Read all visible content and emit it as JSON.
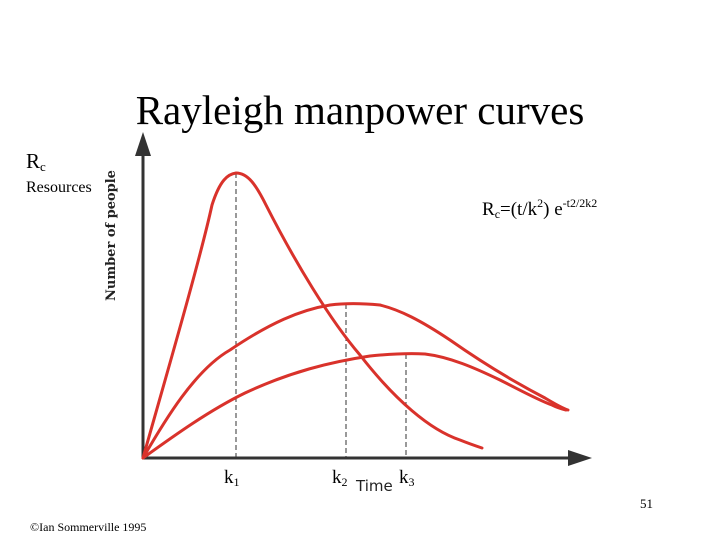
{
  "slide": {
    "title": "Rayleigh manpower curves",
    "rc_symbol": "R",
    "rc_subscript": "c",
    "resources_label": "Resources",
    "formula": {
      "lhs_base": "R",
      "lhs_sub": "c",
      "eq_open": "=(t/k",
      "k_sq": "2",
      "eq_close": ") e",
      "exponent": "-t2/2k2"
    },
    "axes": {
      "y_label": "Number of people",
      "x_label": "Time"
    },
    "k_markers": [
      {
        "base": "k",
        "sub": "1"
      },
      {
        "base": "k",
        "sub": "2"
      },
      {
        "base": "k",
        "sub": "3"
      }
    ],
    "page_number": "51",
    "copyright": "©Ian Sommerville 1995"
  },
  "colors": {
    "curve": "#d9322b",
    "axis": "#333333",
    "guide": "#333333",
    "text": "#000000"
  }
}
